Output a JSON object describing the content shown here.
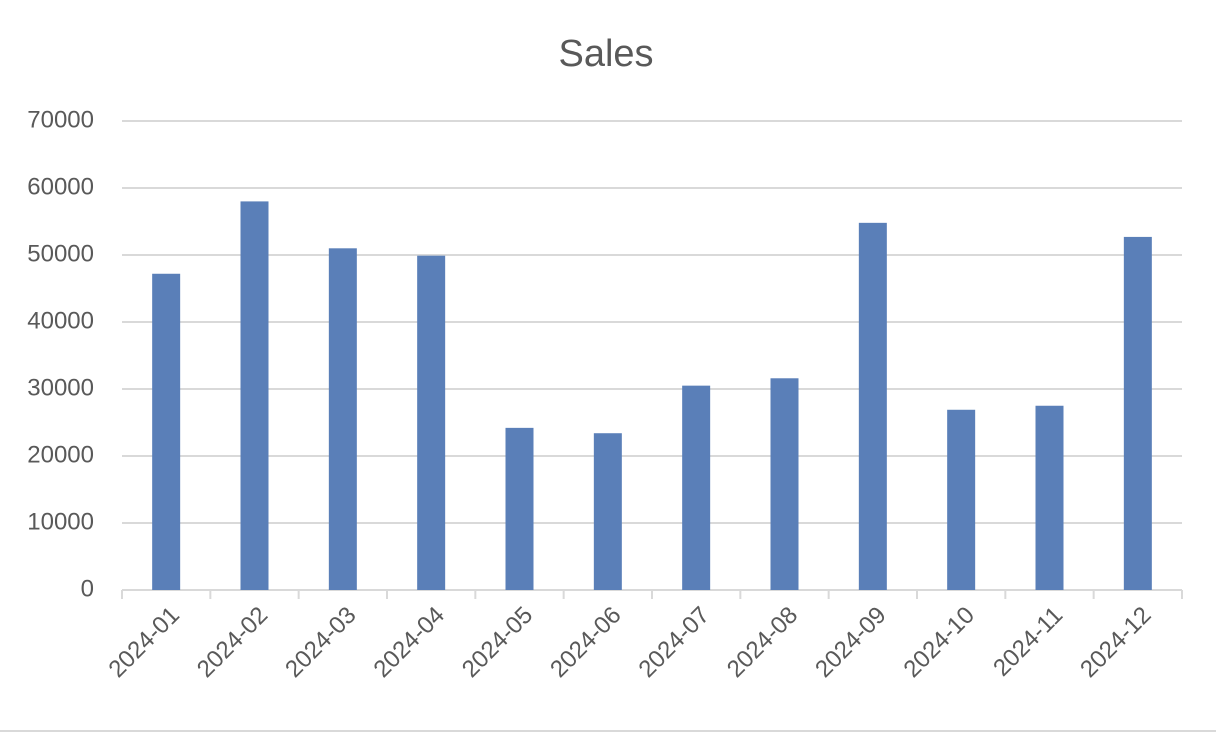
{
  "chart_data": {
    "type": "bar",
    "title": "Sales",
    "categories": [
      "2024-01",
      "2024-02",
      "2024-03",
      "2024-04",
      "2024-05",
      "2024-06",
      "2024-07",
      "2024-08",
      "2024-09",
      "2024-10",
      "2024-11",
      "2024-12"
    ],
    "values": [
      47200,
      58000,
      51000,
      49900,
      24200,
      23400,
      30500,
      31600,
      54800,
      26900,
      27500,
      52700
    ],
    "color": "#5a7fb8",
    "ylim": [
      0,
      70000
    ],
    "yticks": [
      0,
      10000,
      20000,
      30000,
      40000,
      50000,
      60000,
      70000
    ],
    "grid": true
  }
}
